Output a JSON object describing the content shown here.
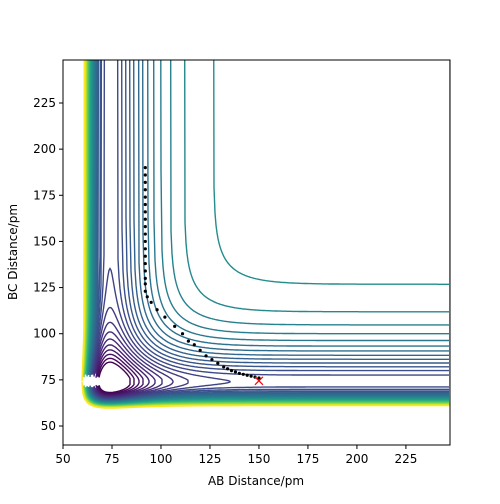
{
  "chart_data": {
    "type": "contour",
    "xlabel": "AB Distance/pm",
    "ylabel": "BC Distance/pm",
    "xlim": [
      50,
      247.5
    ],
    "ylim": [
      39.7,
      248.3
    ],
    "xticks": [
      50,
      75,
      100,
      125,
      150,
      175,
      200,
      225
    ],
    "yticks": [
      50,
      75,
      100,
      125,
      150,
      175,
      200,
      225
    ],
    "series": [
      {
        "marker": "dot",
        "color": "#000000",
        "x": [
          150,
          148,
          146,
          144,
          142,
          140,
          138,
          136,
          134,
          132,
          129,
          126,
          123,
          120,
          117,
          114,
          111,
          107,
          102,
          98,
          95,
          93,
          92,
          92,
          92,
          92,
          92,
          92,
          92,
          92,
          92,
          92,
          92,
          92,
          92,
          92,
          92,
          92,
          92,
          92
        ],
        "y": [
          76,
          76.5,
          77,
          77.5,
          78,
          78.5,
          79.3,
          80,
          81,
          82,
          84,
          86,
          88,
          91,
          94,
          96,
          100,
          104,
          109,
          113,
          117,
          120,
          123,
          127,
          130,
          134,
          138,
          142,
          146,
          150,
          154,
          158,
          162,
          166,
          170,
          174,
          178,
          182,
          186,
          190
        ]
      },
      {
        "marker": "x",
        "color": "#ff0000",
        "x": [
          150
        ],
        "y": [
          74.5
        ]
      }
    ]
  }
}
